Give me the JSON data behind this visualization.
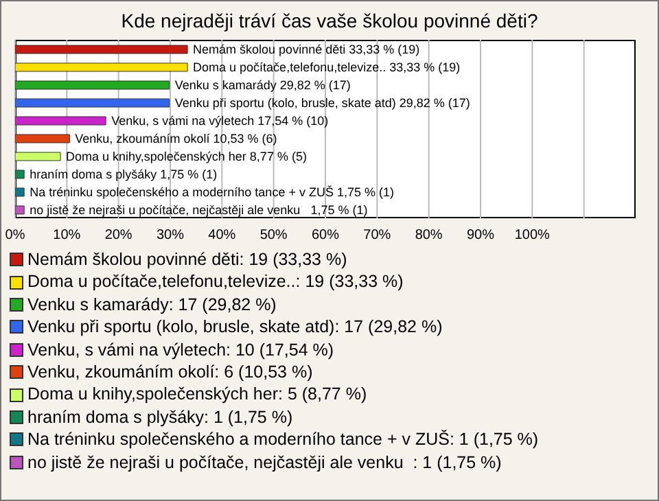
{
  "chart_data": {
    "type": "bar",
    "orientation": "horizontal",
    "title": "Kde nejraději tráví čas vaše školou povinné děti?",
    "categories": [
      "Nemám školou povinné děti",
      "Doma u počítače,telefonu,televize..",
      "Venku s kamarády",
      "Venku při sportu (kolo, brusle, skate atd)",
      "Venku, s vámi na výletech",
      "Venku, zkoumáním okolí",
      "Doma u knihy,společenských her",
      "hraním doma s plyšáky",
      "Na tréninku společenského a moderního tance + v ZUŠ",
      "no jistě že nejraši u počítače, nejčastěji ale venku  "
    ],
    "values": [
      33.33,
      33.33,
      29.82,
      29.82,
      17.54,
      10.53,
      8.77,
      1.75,
      1.75,
      1.75
    ],
    "value_labels": [
      "33,33 % (19)",
      "33,33 % (19)",
      "29,82 % (17)",
      "29,82 % (17)",
      "17,54 % (10)",
      "10,53 % (6)",
      "8,77 % (5)",
      "1,75 % (1)",
      "1,75 % (1)",
      "1,75 % (1)"
    ],
    "colors": [
      "#c8190f",
      "#ffe000",
      "#22aa22",
      "#3366ee",
      "#cc22cc",
      "#e04010",
      "#ccff66",
      "#118855",
      "#117788",
      "#bb55bb"
    ],
    "xlim": [
      0,
      120
    ],
    "xticks": [
      {
        "value": 0,
        "label": "0%"
      },
      {
        "value": 10,
        "label": "10%"
      },
      {
        "value": 20,
        "label": "20%"
      },
      {
        "value": 30,
        "label": "30%"
      },
      {
        "value": 40,
        "label": "40%"
      },
      {
        "value": 50,
        "label": "50%"
      },
      {
        "value": 60,
        "label": "60%"
      },
      {
        "value": 70,
        "label": "70%"
      },
      {
        "value": 80,
        "label": "80%"
      },
      {
        "value": 90,
        "label": "90%"
      },
      {
        "value": 100,
        "label": "100%"
      },
      {
        "value": 110,
        "label": null
      }
    ],
    "grid": "x",
    "tick_labels": "x",
    "annotations": [
      "Nemám školou povinné děti: 19 (33,33 %)",
      "Doma u počítače,telefonu,televize..: 19 (33,33 %)",
      "Venku s kamarády: 17 (29,82 %)",
      "Venku při sportu (kolo, brusle, skate atd): 17 (29,82 %)",
      "Venku, s vámi na výletech: 10 (17,54 %)",
      "Venku, zkoumáním okolí: 6 (10,53 %)",
      "Doma u knihy,společenských her: 5 (8,77 %)",
      "hraním doma s plyšáky: 1 (1,75 %)",
      "Na tréninku společenského a moderního tance + v ZUŠ: 1 (1,75 %)",
      "no jistě že nejraši u počítače, nejčastěji ale venku  : 1 (1,75 %)"
    ]
  }
}
